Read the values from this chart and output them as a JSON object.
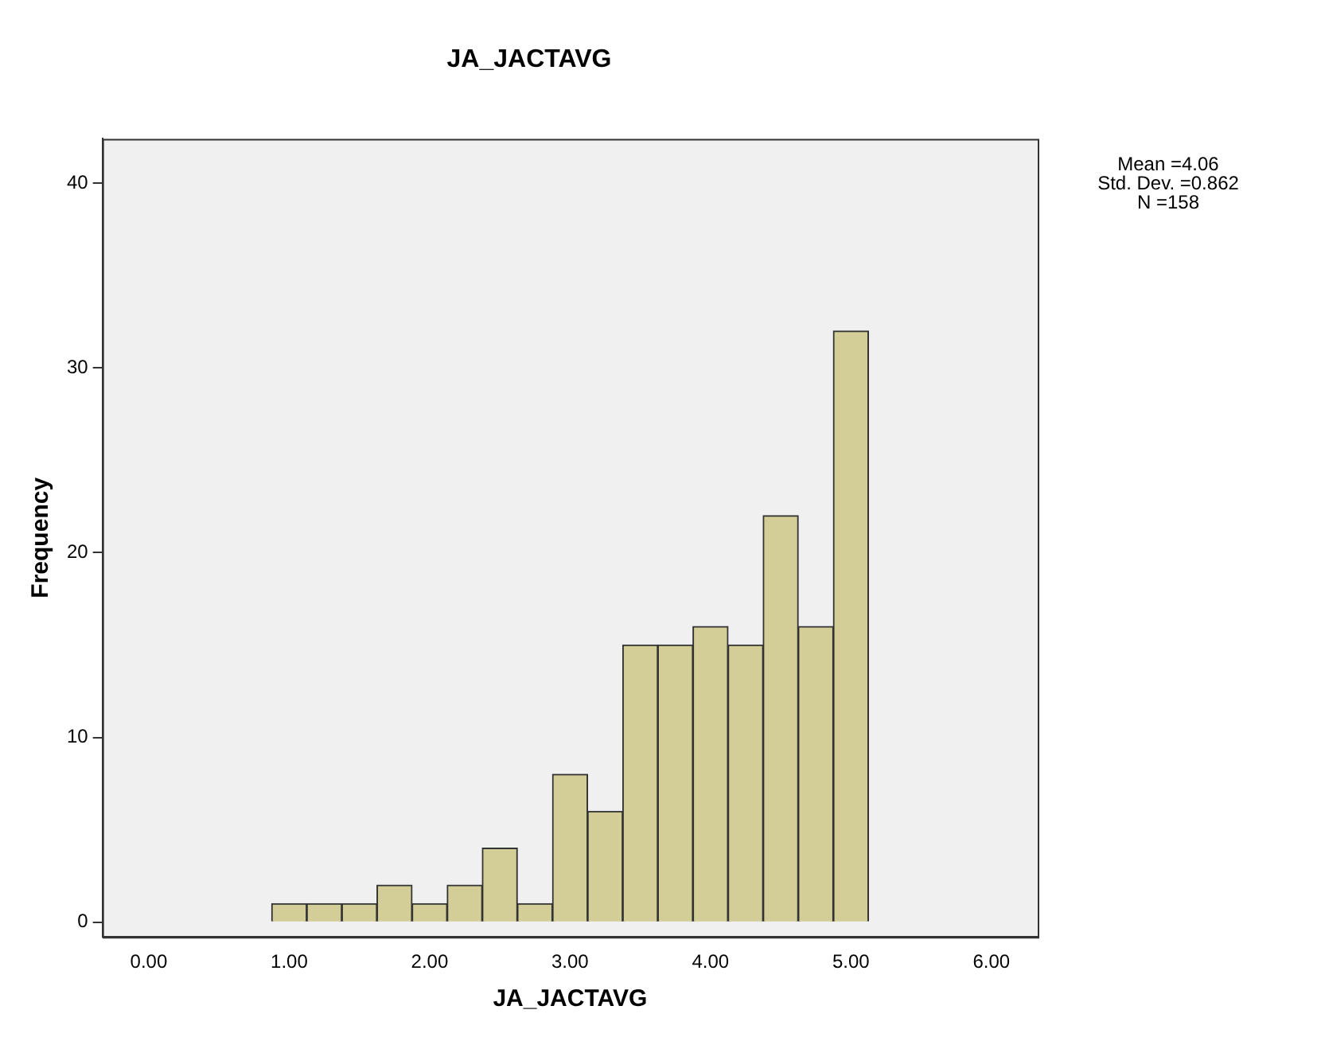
{
  "chart_data": {
    "type": "histogram",
    "title": "JA_JACTAVG",
    "xlabel": "JA_JACTAVG",
    "ylabel": "Frequency",
    "bins": [
      0.875,
      1.125,
      1.375,
      1.625,
      1.875,
      2.125,
      2.375,
      2.625,
      2.875,
      3.125,
      3.375,
      3.625,
      3.875,
      4.125,
      4.375,
      4.625,
      4.875,
      5.125
    ],
    "values": [
      1,
      1,
      1,
      2,
      1,
      2,
      4,
      1,
      8,
      6,
      15,
      15,
      16,
      15,
      22,
      16,
      32
    ],
    "color": "#d3ce98",
    "xlim": [
      -0.33,
      6.33
    ],
    "ylim": [
      -0.8,
      42.4
    ],
    "xticks": [
      {
        "value": 0,
        "label": "0.00"
      },
      {
        "value": 1,
        "label": "1.00"
      },
      {
        "value": 2,
        "label": "2.00"
      },
      {
        "value": 3,
        "label": "3.00"
      },
      {
        "value": 4,
        "label": "4.00"
      },
      {
        "value": 5,
        "label": "5.00"
      },
      {
        "value": 6,
        "label": "6.00"
      }
    ],
    "yticks": [
      0,
      10,
      20,
      30,
      40
    ],
    "grid": false,
    "legend": false,
    "annotations": [
      "Mean =4.06",
      "Std. Dev. =0.862",
      "N =158"
    ]
  }
}
